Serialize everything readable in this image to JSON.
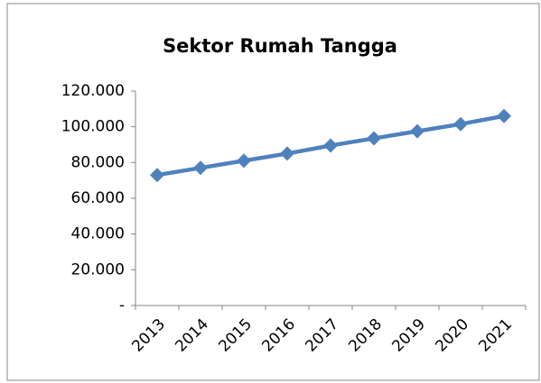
{
  "chart_data": {
    "type": "line",
    "title": "Sektor Rumah Tangga",
    "categories": [
      "2013",
      "2014",
      "2015",
      "2016",
      "2017",
      "2018",
      "2019",
      "2020",
      "2021"
    ],
    "series": [
      {
        "name": "Sektor Rumah Tangga",
        "color": "#4f81bd",
        "values": [
          73000,
          77000,
          81000,
          85000,
          89500,
          93500,
          97500,
          101500,
          106000
        ]
      }
    ],
    "ylim": [
      0,
      120000
    ],
    "yticks": [
      {
        "value": 0,
        "label": "-"
      },
      {
        "value": 20000,
        "label": "20.000"
      },
      {
        "value": 40000,
        "label": "40.000"
      },
      {
        "value": 60000,
        "label": "60.000"
      },
      {
        "value": 80000,
        "label": "80.000"
      },
      {
        "value": 100000,
        "label": "100.000"
      },
      {
        "value": 120000,
        "label": "120.000"
      }
    ],
    "grid": false
  }
}
